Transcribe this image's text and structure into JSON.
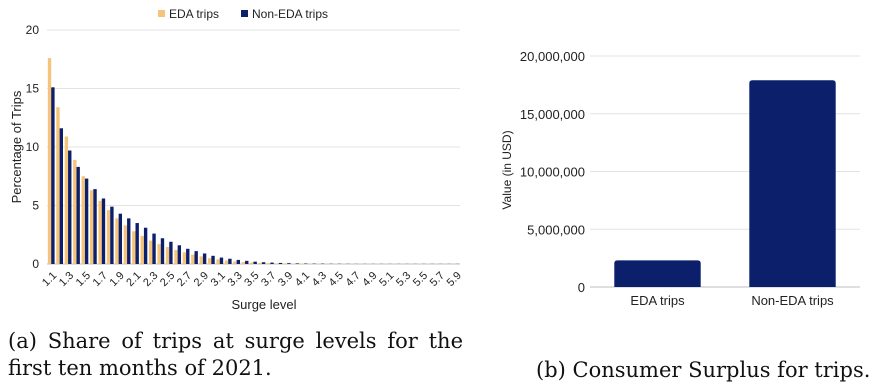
{
  "chart_data": [
    {
      "type": "bar",
      "xlabel": "Surge level",
      "ylabel": "Percentage of Trips",
      "ylim": [
        0,
        20
      ],
      "yticks": [
        "0",
        "5",
        "10",
        "15",
        "20"
      ],
      "grid": "horizontal",
      "legend": "top-center",
      "categories": [
        "1.1",
        "1.2",
        "1.3",
        "1.4",
        "1.5",
        "1.6",
        "1.7",
        "1.8",
        "1.9",
        "2.0",
        "2.1",
        "2.2",
        "2.3",
        "2.4",
        "2.5",
        "2.6",
        "2.7",
        "2.8",
        "2.9",
        "3.0",
        "3.1",
        "3.2",
        "3.3",
        "3.4",
        "3.5",
        "3.6",
        "3.7",
        "3.8",
        "3.9",
        "4.0",
        "4.1",
        "4.2",
        "4.3",
        "4.4",
        "4.5",
        "4.6",
        "4.7",
        "4.8",
        "4.9",
        "5.0",
        "5.1",
        "5.2",
        "5.3",
        "5.4",
        "5.5",
        "5.6",
        "5.7",
        "5.8",
        "5.9"
      ],
      "tick_labels": [
        "1.1",
        "1.3",
        "1.5",
        "1.7",
        "1.9",
        "2.1",
        "2.3",
        "2.5",
        "2.7",
        "2.9",
        "3.1",
        "3.3",
        "3.5",
        "3.7",
        "3.9",
        "4.1",
        "4.3",
        "4.5",
        "4.7",
        "4.9",
        "5.1",
        "5.3",
        "5.5",
        "5.7",
        "5.9"
      ],
      "series": [
        {
          "name": "EDA trips",
          "color": "#F5C47A",
          "values": [
            17.6,
            13.4,
            10.9,
            8.9,
            7.5,
            6.3,
            5.4,
            4.6,
            3.9,
            3.3,
            2.8,
            2.4,
            2.0,
            1.7,
            1.45,
            1.2,
            1.0,
            0.8,
            0.65,
            0.5,
            0.4,
            0.3,
            0.22,
            0.17,
            0.13,
            0.1,
            0.08,
            0.06,
            0.05,
            0.04,
            0.03,
            0.02,
            0.02,
            0.015,
            0.01,
            0.01,
            0.01,
            0.01,
            0.005,
            0.005,
            0.005,
            0.005,
            0.005,
            0.005,
            0.005,
            0.005,
            0.005,
            0.005,
            0.005
          ]
        },
        {
          "name": "Non-EDA trips",
          "color": "#0B1F6B",
          "values": [
            15.1,
            11.6,
            9.7,
            8.3,
            7.3,
            6.4,
            5.6,
            4.9,
            4.3,
            3.9,
            3.5,
            3.1,
            2.6,
            2.2,
            1.9,
            1.6,
            1.3,
            1.1,
            0.9,
            0.7,
            0.55,
            0.45,
            0.35,
            0.27,
            0.2,
            0.15,
            0.12,
            0.09,
            0.07,
            0.05,
            0.04,
            0.03,
            0.03,
            0.02,
            0.02,
            0.015,
            0.01,
            0.01,
            0.01,
            0.01,
            0.01,
            0.01,
            0.01,
            0.01,
            0.01,
            0.01,
            0.01,
            0.01,
            0.01
          ]
        }
      ]
    },
    {
      "type": "bar",
      "xlabel": "",
      "ylabel": "Value (in USD)",
      "ylim": [
        0,
        20000000
      ],
      "yticks": [
        "0",
        "5,000,000",
        "10,000,000",
        "15,000,000",
        "20,000,000"
      ],
      "grid": "horizontal",
      "categories": [
        "EDA trips",
        "Non-EDA trips"
      ],
      "values": [
        2300000,
        17900000
      ],
      "color": "#0B1F6B"
    }
  ],
  "captions": {
    "a_line1": "(a) Share of trips at surge levels for the",
    "a_line2": "first ten months of 2021.",
    "b": "(b) Consumer Surplus for trips."
  }
}
